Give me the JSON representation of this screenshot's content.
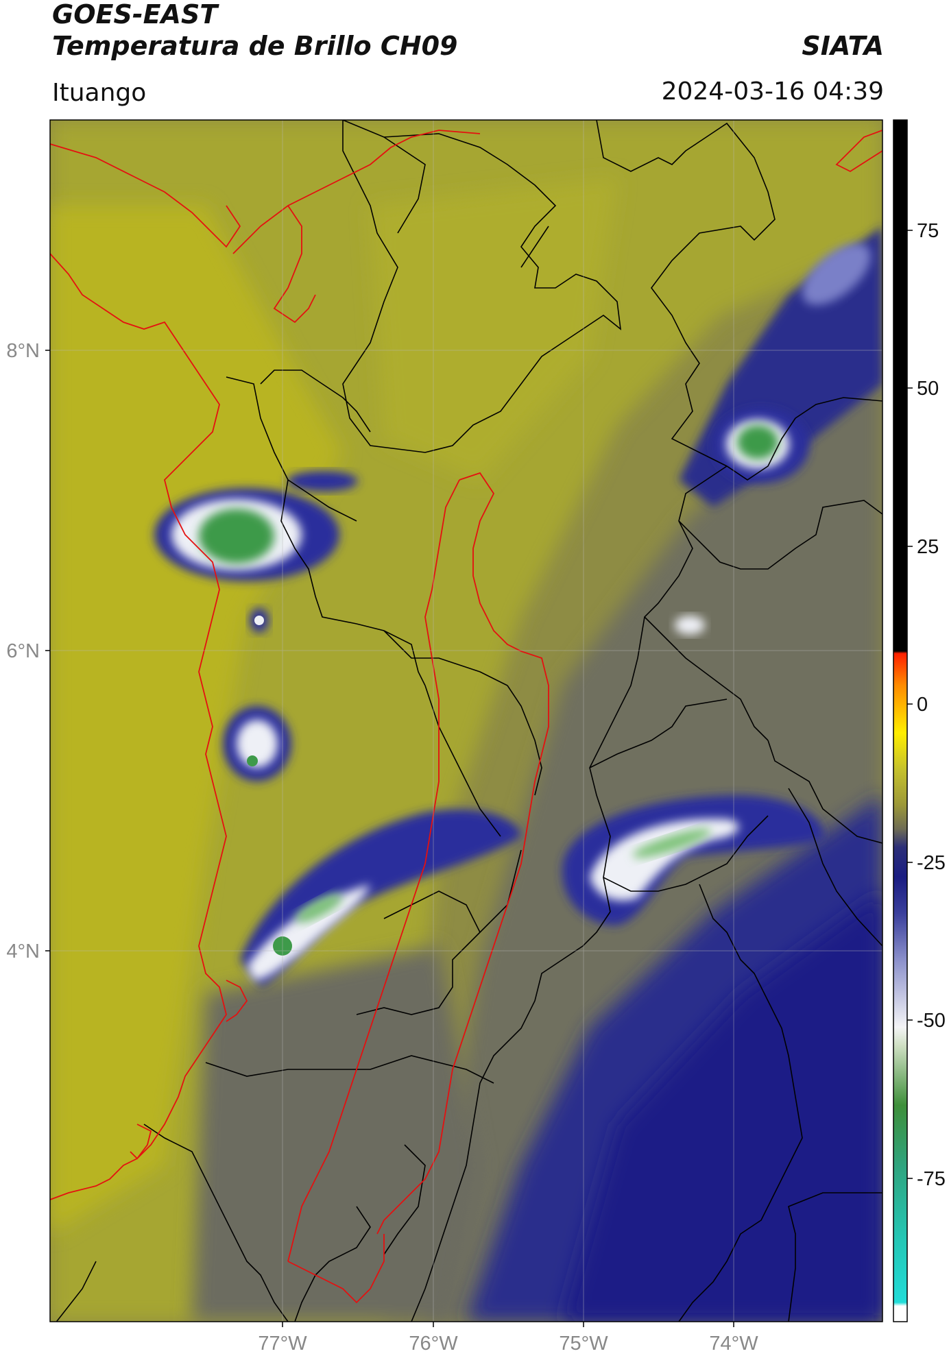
{
  "header": {
    "satellite": "GOES-EAST",
    "product": "Temperatura de Brillo CH09",
    "agency": "SIATA",
    "location": "Ituango",
    "datetime": "2024-03-16 04:39"
  },
  "map": {
    "lat_range": [
      2.0,
      10.0
    ],
    "lon_range": [
      -78.55,
      -73.0
    ],
    "lat_ticks": [
      "8°N",
      "6°N",
      "4°N"
    ],
    "lon_ticks": [
      "77°W",
      "76°W",
      "75°W",
      "74°W"
    ],
    "graticule": true,
    "boundary_colors": {
      "departments": "#000000",
      "highlight": "#e41010"
    },
    "field_colors": [
      "#b8b424",
      "#a6a632",
      "#8e8c44",
      "#6f6f5e",
      "#55587a",
      "#2a2f8c",
      "#1c1f86",
      "#6e74c2",
      "#e8eaf4",
      "#7fc37a",
      "#3e9a4a"
    ]
  },
  "colorbar": {
    "range": [
      -95,
      93
    ],
    "ticks": [
      "75",
      "50",
      "25",
      "0",
      "-25",
      "-50",
      "-75"
    ],
    "colors": [
      "#ffffff",
      "#21dcd8",
      "#2fb08c",
      "#3e8f3a",
      "#d0e0c4",
      "#f4f4f6",
      "#5a62b0",
      "#1a1d82",
      "#6e6c54",
      "#c6c22c",
      "#ffee00",
      "#ff8a00",
      "#ff2000",
      "#000000"
    ]
  }
}
